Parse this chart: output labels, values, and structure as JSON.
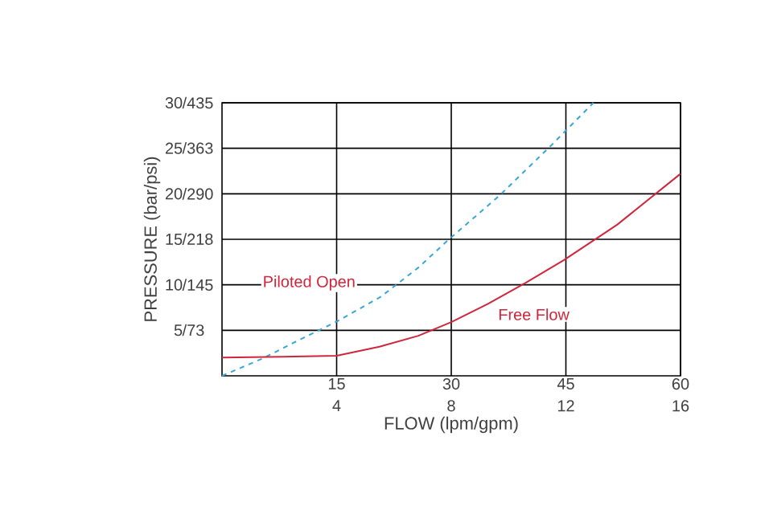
{
  "chart_data": {
    "type": "line",
    "xlabel": "FLOW (lpm/gpm)",
    "ylabel": "PRESSURE (bar/psi)",
    "xlim": [
      0,
      60
    ],
    "xticks": [
      15,
      30,
      45,
      60
    ],
    "x2lim": [
      0,
      16
    ],
    "x2ticks": [
      4,
      8,
      12,
      16
    ],
    "ylim": [
      0,
      30
    ],
    "yticks": [
      5,
      10,
      15,
      20,
      25,
      30
    ],
    "y2lim": [
      0,
      435
    ],
    "y2ticks": [
      {
        "value": 73,
        "label": "/73"
      },
      {
        "value": 145,
        "label": "/145"
      },
      {
        "value": 218,
        "label": "/218"
      },
      {
        "value": 290,
        "label": "/290"
      },
      {
        "value": 363,
        "label": "/363"
      },
      {
        "value": 435,
        "label": "/435"
      }
    ],
    "grid": true,
    "series": [
      {
        "color": "#3aa6d6",
        "line_style": "dashed",
        "x": [
          0,
          5.3,
          10,
          15.1,
          20.8,
          25.7,
          29.7,
          36.3,
          43.3,
          48.6
        ],
        "values": [
          0,
          1.9,
          3.9,
          6.0,
          8.7,
          11.9,
          15.0,
          19.8,
          25.5,
          30
        ]
      },
      {
        "color": "#d0263c",
        "line_style": "solid",
        "x": [
          0,
          8,
          15,
          20.6,
          25.7,
          30,
          34.8,
          39.7,
          44.7,
          51.7,
          60
        ],
        "values": [
          2.0,
          2.1,
          2.2,
          3.2,
          4.4,
          5.9,
          7.9,
          10.2,
          12.7,
          16.6,
          22.2
        ]
      }
    ],
    "annotations": [
      "Piloted Open",
      "Free Flow"
    ]
  }
}
